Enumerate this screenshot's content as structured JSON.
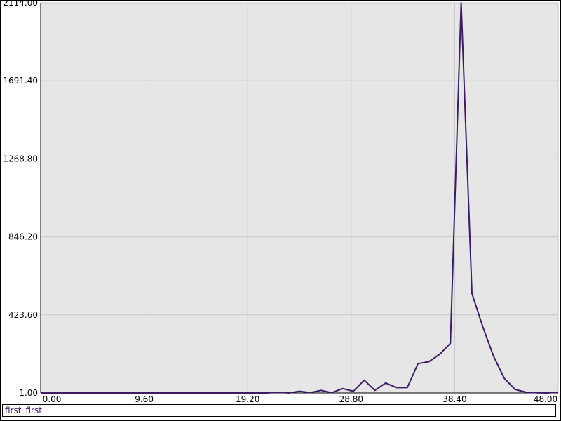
{
  "chart_data": {
    "type": "line",
    "title": "",
    "xlabel": "",
    "ylabel": "",
    "xlim": [
      0,
      48
    ],
    "ylim": [
      1,
      2114
    ],
    "grid": true,
    "legend_position": "bottom",
    "x_ticks": [
      "0.00",
      "9.60",
      "19.20",
      "28.80",
      "38.40",
      "48.00"
    ],
    "x_tick_values": [
      0,
      9.6,
      19.2,
      28.8,
      38.4,
      48
    ],
    "y_ticks": [
      "1.00",
      "423.60",
      "846.20",
      "1268.80",
      "1691.40",
      "2114.00"
    ],
    "y_tick_values": [
      1,
      423.6,
      846.2,
      1268.8,
      1691.4,
      2114
    ],
    "series": [
      {
        "name": "first_first",
        "color": "#3d1a66",
        "x": [
          0,
          1,
          2,
          3,
          4,
          5,
          6,
          7,
          8,
          9,
          10,
          11,
          12,
          13,
          14,
          15,
          16,
          17,
          18,
          19,
          20,
          21,
          22,
          23,
          24,
          25,
          26,
          27,
          28,
          29,
          30,
          31,
          32,
          33,
          34,
          35,
          36,
          37,
          38,
          39,
          40,
          41,
          42,
          43,
          44,
          45,
          46,
          47,
          48
        ],
        "y": [
          1,
          1,
          1,
          1,
          1,
          1,
          1,
          1,
          1,
          1,
          1,
          1,
          1,
          1,
          1,
          1,
          1,
          1,
          1,
          1,
          1,
          1,
          5,
          1,
          10,
          3,
          15,
          2,
          25,
          10,
          70,
          15,
          55,
          30,
          30,
          160,
          170,
          210,
          270,
          2114,
          540,
          360,
          200,
          80,
          20,
          5,
          2,
          1,
          5
        ]
      }
    ]
  }
}
